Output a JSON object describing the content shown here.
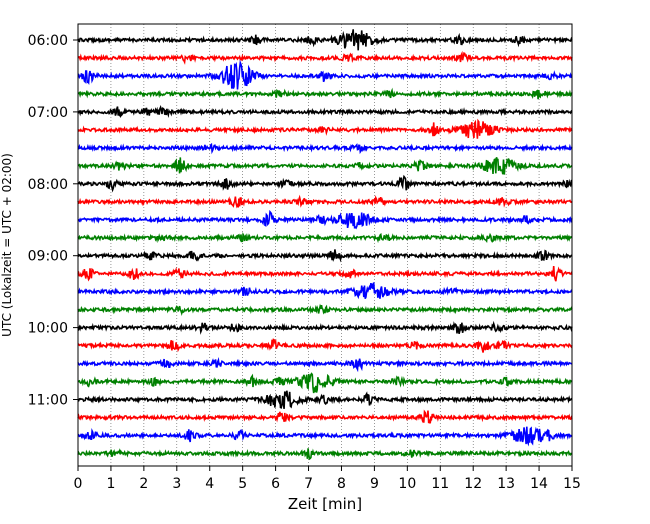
{
  "chart_data": {
    "type": "line",
    "subtype": "helicorder",
    "xlabel": "Zeit  [min]",
    "ylabel": "UTC (Lokalzeit = UTC + 02:00)",
    "xlim": [
      0,
      15
    ],
    "x_ticks": [
      "0",
      "1",
      "2",
      "3",
      "4",
      "5",
      "6",
      "7",
      "8",
      "9",
      "10",
      "11",
      "12",
      "13",
      "14",
      "15"
    ],
    "y_tick_labels": [
      "06:00",
      "07:00",
      "08:00",
      "09:00",
      "10:00",
      "11:00"
    ],
    "row_minutes": 15,
    "start_time": "06:00",
    "grid": {
      "vertical_dotted": true
    },
    "colors": [
      "#000000",
      "#ff0000",
      "#0000ff",
      "#008000"
    ],
    "rows": [
      {
        "label": "06:00",
        "color": "#000000",
        "events": [
          [
            5.4,
            4
          ],
          [
            7.1,
            4
          ],
          [
            8.4,
            10
          ],
          [
            11.6,
            4
          ],
          [
            13.4,
            3
          ]
        ]
      },
      {
        "label": "06:15",
        "color": "#ff0000",
        "events": [
          [
            3.3,
            3
          ],
          [
            8.2,
            3
          ],
          [
            11.7,
            4
          ]
        ]
      },
      {
        "label": "06:30",
        "color": "#0000ff",
        "events": [
          [
            0.3,
            6
          ],
          [
            4.8,
            13
          ],
          [
            7.5,
            5
          ],
          [
            14.4,
            3
          ]
        ]
      },
      {
        "label": "06:45",
        "color": "#008000",
        "events": [
          [
            6.1,
            5
          ],
          [
            9.4,
            4
          ],
          [
            14.0,
            4
          ]
        ]
      },
      {
        "label": "07:00",
        "color": "#000000",
        "events": [
          [
            1.2,
            4
          ],
          [
            2.1,
            3
          ],
          [
            2.6,
            4
          ]
        ]
      },
      {
        "label": "07:15",
        "color": "#ff0000",
        "events": [
          [
            7.4,
            3
          ],
          [
            10.8,
            6
          ],
          [
            12.1,
            9
          ]
        ]
      },
      {
        "label": "07:30",
        "color": "#0000ff",
        "events": [
          [
            4.0,
            3
          ],
          [
            8.5,
            3
          ]
        ]
      },
      {
        "label": "07:45",
        "color": "#008000",
        "events": [
          [
            1.3,
            4
          ],
          [
            3.1,
            7
          ],
          [
            8.6,
            3
          ],
          [
            10.4,
            5
          ],
          [
            12.8,
            8
          ]
        ]
      },
      {
        "label": "08:00",
        "color": "#000000",
        "events": [
          [
            1.0,
            5
          ],
          [
            4.5,
            5
          ],
          [
            6.3,
            3
          ],
          [
            9.9,
            6
          ],
          [
            14.9,
            3
          ]
        ]
      },
      {
        "label": "08:15",
        "color": "#ff0000",
        "events": [
          [
            4.8,
            6
          ],
          [
            6.8,
            4
          ],
          [
            9.1,
            5
          ],
          [
            12.9,
            3
          ]
        ]
      },
      {
        "label": "08:30",
        "color": "#0000ff",
        "events": [
          [
            5.8,
            7
          ],
          [
            8.4,
            8
          ],
          [
            7.4,
            3
          ],
          [
            13.6,
            3
          ]
        ]
      },
      {
        "label": "08:45",
        "color": "#008000",
        "events": [
          [
            2.6,
            3
          ],
          [
            5.0,
            3
          ],
          [
            9.3,
            3
          ],
          [
            12.5,
            3
          ]
        ]
      },
      {
        "label": "09:00",
        "color": "#000000",
        "events": [
          [
            2.2,
            3
          ],
          [
            3.5,
            5
          ],
          [
            7.8,
            6
          ],
          [
            14.1,
            5
          ]
        ]
      },
      {
        "label": "09:15",
        "color": "#ff0000",
        "events": [
          [
            0.3,
            5
          ],
          [
            1.7,
            5
          ],
          [
            3.1,
            4
          ],
          [
            8.3,
            3
          ],
          [
            14.5,
            7
          ]
        ]
      },
      {
        "label": "09:30",
        "color": "#0000ff",
        "events": [
          [
            5.1,
            4
          ],
          [
            8.9,
            8
          ],
          [
            11.3,
            3
          ]
        ]
      },
      {
        "label": "09:45",
        "color": "#008000",
        "events": [
          [
            3.1,
            3
          ],
          [
            7.4,
            6
          ]
        ]
      },
      {
        "label": "10:00",
        "color": "#000000",
        "events": [
          [
            3.8,
            4
          ],
          [
            4.8,
            4
          ],
          [
            11.6,
            6
          ],
          [
            12.7,
            3
          ]
        ]
      },
      {
        "label": "10:15",
        "color": "#ff0000",
        "events": [
          [
            2.9,
            5
          ],
          [
            5.9,
            5
          ],
          [
            10.2,
            3
          ],
          [
            12.3,
            6
          ],
          [
            12.9,
            4
          ]
        ]
      },
      {
        "label": "10:30",
        "color": "#0000ff",
        "events": [
          [
            2.7,
            4
          ],
          [
            8.5,
            6
          ],
          [
            4.2,
            3
          ]
        ]
      },
      {
        "label": "10:45",
        "color": "#008000",
        "events": [
          [
            0.4,
            4
          ],
          [
            2.3,
            3
          ],
          [
            5.3,
            4
          ],
          [
            6.1,
            3
          ],
          [
            7.2,
            10
          ],
          [
            9.7,
            3
          ],
          [
            13.0,
            3
          ]
        ]
      },
      {
        "label": "11:00",
        "color": "#000000",
        "events": [
          [
            6.2,
            8
          ],
          [
            7.5,
            4
          ],
          [
            8.8,
            5
          ]
        ]
      },
      {
        "label": "11:15",
        "color": "#ff0000",
        "events": [
          [
            6.2,
            5
          ],
          [
            10.6,
            6
          ]
        ]
      },
      {
        "label": "11:30",
        "color": "#0000ff",
        "events": [
          [
            0.4,
            5
          ],
          [
            3.4,
            5
          ],
          [
            4.9,
            4
          ],
          [
            13.7,
            8
          ],
          [
            14.3,
            3
          ]
        ]
      },
      {
        "label": "11:45",
        "color": "#008000",
        "events": [
          [
            1.1,
            3
          ],
          [
            7.0,
            5
          ],
          [
            10.1,
            3
          ]
        ]
      }
    ]
  }
}
